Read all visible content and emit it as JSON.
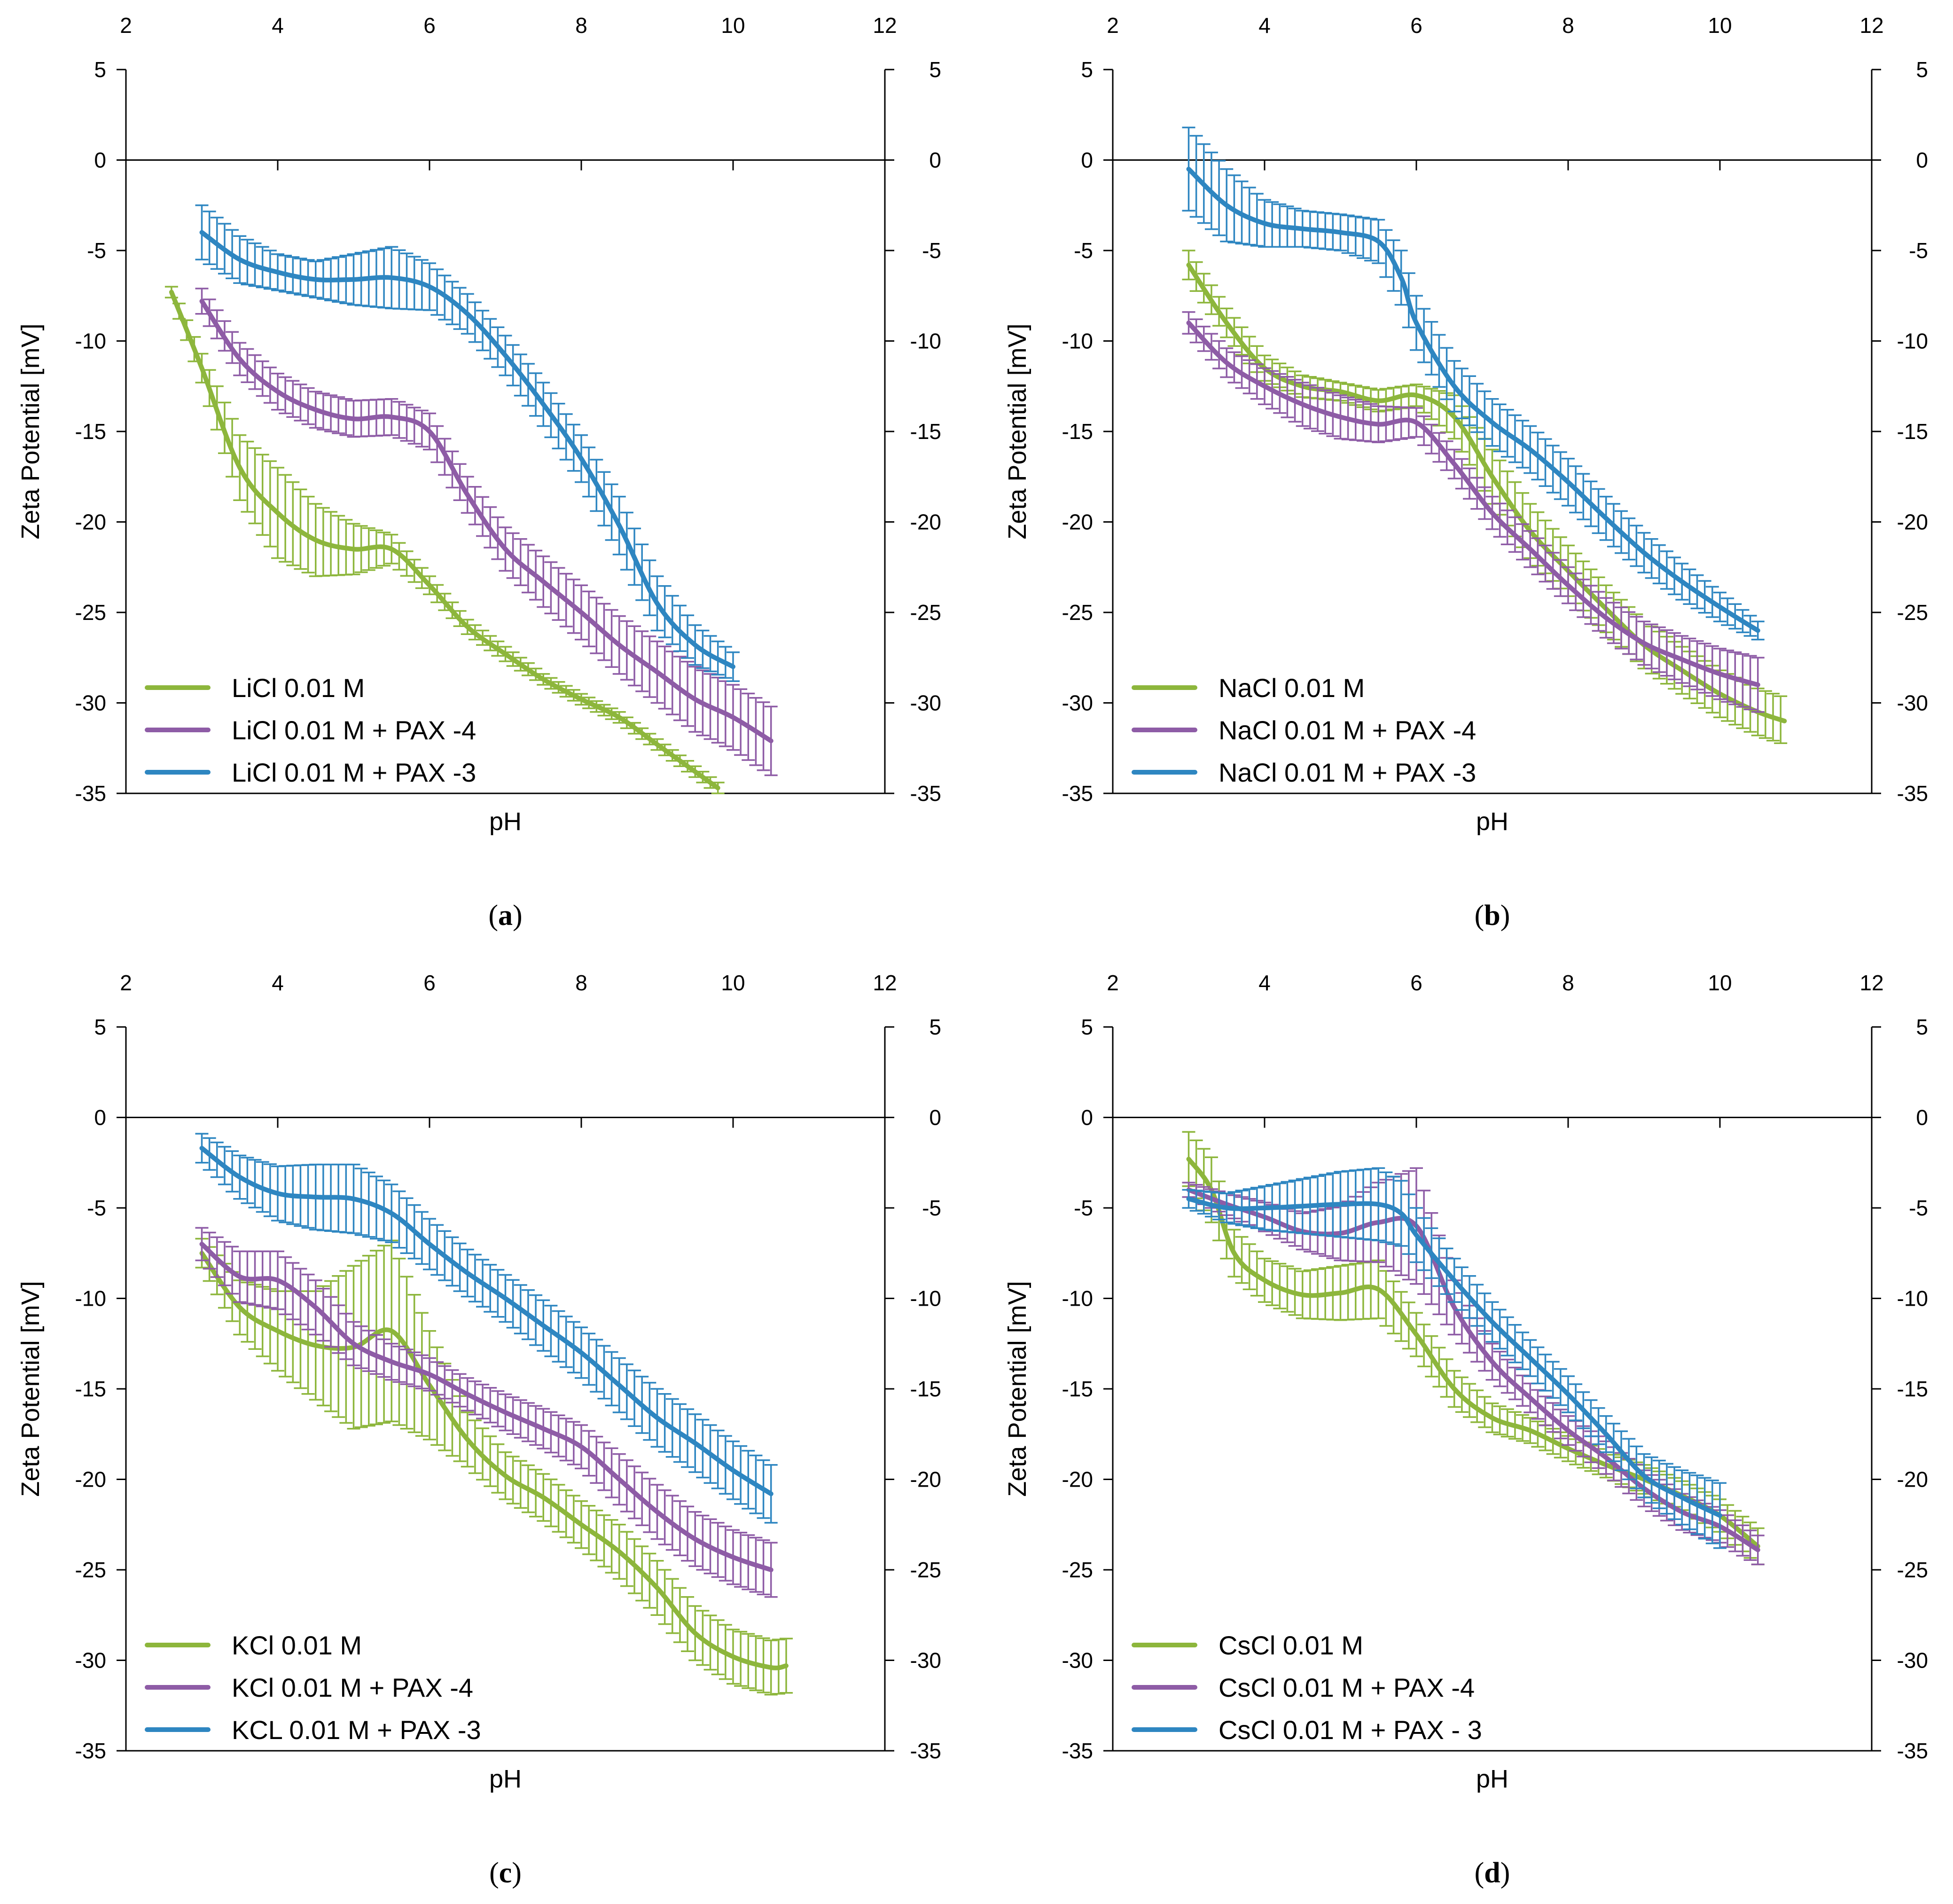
{
  "figure": {
    "axis_color": "#000000"
  },
  "chart_data": [
    {
      "type": "line",
      "panel_id": "a",
      "caption_open": "(",
      "caption_letter": "a",
      "caption_close": ")",
      "xlabel": "pH",
      "ylabel": "Zeta Potential [mV]",
      "xlim": [
        2,
        12
      ],
      "ylim": [
        -35,
        5
      ],
      "xticks": [
        2,
        4,
        6,
        8,
        10,
        12
      ],
      "yticks": [
        5,
        0,
        -5,
        -10,
        -15,
        -20,
        -25,
        -30,
        -35
      ],
      "error_bars": true,
      "legend_position": "bottom-left",
      "series": [
        {
          "name": "LiCl 0.01 M",
          "color": "#8DB63C",
          "x": [
            2.6,
            3.0,
            3.5,
            4.0,
            4.5,
            5.0,
            5.5,
            6.0,
            6.5,
            7.0,
            7.5,
            8.0,
            8.5,
            9.0,
            9.5,
            9.8
          ],
          "y": [
            -7.3,
            -11.5,
            -17.0,
            -19.5,
            -21.0,
            -21.5,
            -21.5,
            -23.5,
            -25.8,
            -27.3,
            -28.7,
            -29.8,
            -30.8,
            -32.3,
            -33.8,
            -34.7
          ],
          "error": [
            0.3,
            0.8,
            1.8,
            2.5,
            2.0,
            1.4,
            0.8,
            0.5,
            0.4,
            0.4,
            0.3,
            0.3,
            0.3,
            0.3,
            0.3,
            0.3
          ]
        },
        {
          "name": "LiCl 0.01 M + PAX -4",
          "color": "#8E5CA6",
          "x": [
            3.0,
            3.5,
            4.0,
            4.5,
            5.0,
            5.5,
            6.0,
            6.5,
            7.0,
            7.5,
            8.0,
            8.5,
            9.0,
            9.5,
            10.0,
            10.5
          ],
          "y": [
            -7.8,
            -11.0,
            -12.8,
            -13.8,
            -14.3,
            -14.2,
            -15.0,
            -18.5,
            -21.5,
            -23.3,
            -25.0,
            -26.8,
            -28.3,
            -29.8,
            -30.8,
            -32.1
          ],
          "error": [
            0.7,
            0.9,
            1.0,
            1.0,
            1.0,
            1.0,
            1.0,
            1.0,
            1.2,
            1.4,
            1.5,
            1.6,
            1.7,
            1.8,
            1.8,
            1.9
          ]
        },
        {
          "name": "LiCl 0.01 M + PAX -3",
          "color": "#2E86C1",
          "x": [
            3.0,
            3.5,
            4.0,
            4.5,
            5.0,
            5.5,
            6.0,
            6.5,
            7.0,
            7.5,
            8.0,
            8.5,
            9.0,
            9.5,
            10.0
          ],
          "y": [
            -4.0,
            -5.5,
            -6.2,
            -6.6,
            -6.6,
            -6.5,
            -7.0,
            -8.5,
            -10.8,
            -13.5,
            -16.5,
            -20.2,
            -24.5,
            -26.8,
            -28.0
          ],
          "error": [
            1.5,
            1.3,
            1.0,
            1.0,
            1.4,
            1.7,
            1.3,
            1.1,
            1.1,
            1.2,
            1.3,
            1.6,
            1.5,
            1.1,
            0.8
          ]
        }
      ]
    },
    {
      "type": "line",
      "panel_id": "b",
      "caption_open": "(",
      "caption_letter": "b",
      "caption_close": ")",
      "xlabel": "pH",
      "ylabel": "Zeta Potential [mV]",
      "xlim": [
        2,
        12
      ],
      "ylim": [
        -35,
        5
      ],
      "xticks": [
        2,
        4,
        6,
        8,
        10,
        12
      ],
      "yticks": [
        5,
        0,
        -5,
        -10,
        -15,
        -20,
        -25,
        -30,
        -35
      ],
      "error_bars": true,
      "legend_position": "bottom-left",
      "series": [
        {
          "name": "NaCl  0.01 M",
          "color": "#8DB63C",
          "x": [
            3.0,
            3.5,
            4.0,
            4.5,
            5.0,
            5.5,
            6.0,
            6.5,
            7.0,
            7.5,
            8.0,
            8.5,
            9.0,
            9.5,
            10.0,
            10.5,
            10.85
          ],
          "y": [
            -5.8,
            -9.0,
            -11.5,
            -12.5,
            -12.8,
            -13.3,
            -13.0,
            -14.2,
            -17.5,
            -20.5,
            -22.7,
            -24.8,
            -26.8,
            -28.2,
            -29.5,
            -30.5,
            -31.0
          ],
          "error": [
            0.8,
            0.8,
            0.7,
            0.6,
            0.5,
            0.6,
            0.6,
            1.2,
            1.5,
            1.5,
            1.4,
            1.3,
            1.3,
            1.3,
            1.3,
            1.3,
            1.3
          ]
        },
        {
          "name": "NaCl 0.01 M + PAX -4",
          "color": "#8E5CA6",
          "x": [
            3.0,
            3.5,
            4.0,
            4.5,
            5.0,
            5.5,
            6.0,
            6.5,
            7.0,
            7.5,
            8.0,
            8.5,
            9.0,
            9.5,
            10.0,
            10.5
          ],
          "y": [
            -9.0,
            -11.2,
            -12.5,
            -13.5,
            -14.2,
            -14.6,
            -14.5,
            -16.8,
            -19.5,
            -21.5,
            -23.5,
            -25.3,
            -26.7,
            -27.6,
            -28.4,
            -29.0
          ],
          "error": [
            0.6,
            0.8,
            1.0,
            1.2,
            1.2,
            1.0,
            0.8,
            0.8,
            0.9,
            1.0,
            1.0,
            1.1,
            1.2,
            1.3,
            1.4,
            1.5
          ]
        },
        {
          "name": "NaCl 0.01 M + PAX -3",
          "color": "#2E86C1",
          "x": [
            3.0,
            3.5,
            4.0,
            4.5,
            5.0,
            5.5,
            5.8,
            6.0,
            6.5,
            7.0,
            7.5,
            8.0,
            8.5,
            9.0,
            9.5,
            10.0,
            10.5
          ],
          "y": [
            -0.5,
            -2.5,
            -3.5,
            -3.8,
            -4.0,
            -4.5,
            -6.5,
            -9.0,
            -12.5,
            -14.5,
            -16.0,
            -17.8,
            -19.8,
            -21.7,
            -23.3,
            -24.7,
            -26.0
          ],
          "error": [
            2.3,
            2.0,
            1.3,
            1.0,
            1.0,
            1.2,
            1.5,
            1.5,
            1.4,
            1.3,
            1.3,
            1.3,
            1.2,
            1.1,
            1.0,
            0.8,
            0.5
          ]
        }
      ]
    },
    {
      "type": "line",
      "panel_id": "c",
      "caption_open": "(",
      "caption_letter": "c",
      "caption_close": ")",
      "xlabel": "pH",
      "ylabel": "Zeta Potential [mV]",
      "xlim": [
        2,
        12
      ],
      "ylim": [
        -35,
        5
      ],
      "xticks": [
        2,
        4,
        6,
        8,
        10,
        12
      ],
      "yticks": [
        5,
        0,
        -5,
        -10,
        -15,
        -20,
        -25,
        -30,
        -35
      ],
      "error_bars": true,
      "legend_position": "bottom-left",
      "series": [
        {
          "name": "KCl 0.01 M",
          "color": "#8DB63C",
          "x": [
            3.0,
            3.5,
            4.0,
            4.5,
            5.0,
            5.5,
            6.0,
            6.5,
            7.0,
            7.5,
            8.0,
            8.5,
            9.0,
            9.5,
            10.0,
            10.5,
            10.7
          ],
          "y": [
            -7.5,
            -10.5,
            -11.8,
            -12.6,
            -12.7,
            -11.8,
            -14.8,
            -17.8,
            -19.8,
            -21.0,
            -22.5,
            -24.0,
            -26.0,
            -28.5,
            -29.8,
            -30.4,
            -30.3
          ],
          "error": [
            0.8,
            1.5,
            2.2,
            3.0,
            4.5,
            5.0,
            3.0,
            1.5,
            1.3,
            1.3,
            1.3,
            1.5,
            1.5,
            1.5,
            1.5,
            1.5,
            1.5
          ]
        },
        {
          "name": "KCl 0.01 M + PAX -4",
          "color": "#8E5CA6",
          "x": [
            3.0,
            3.5,
            4.0,
            4.5,
            5.0,
            5.5,
            6.0,
            6.5,
            7.0,
            7.5,
            8.0,
            8.5,
            9.0,
            9.5,
            10.0,
            10.5
          ],
          "y": [
            -7.0,
            -8.8,
            -9.0,
            -10.5,
            -12.5,
            -13.5,
            -14.2,
            -15.3,
            -16.3,
            -17.2,
            -18.2,
            -20.0,
            -21.8,
            -23.3,
            -24.3,
            -25.0
          ],
          "error": [
            0.9,
            1.4,
            1.6,
            1.5,
            1.2,
            1.0,
            0.9,
            0.9,
            1.0,
            1.1,
            1.2,
            1.4,
            1.5,
            1.5,
            1.5,
            1.5
          ]
        },
        {
          "name": "KCL 0.01 M + PAX -3",
          "color": "#2E86C1",
          "x": [
            3.0,
            3.5,
            4.0,
            4.5,
            5.0,
            5.5,
            6.0,
            6.5,
            7.0,
            7.5,
            8.0,
            8.5,
            9.0,
            9.5,
            10.0,
            10.5
          ],
          "y": [
            -1.7,
            -3.3,
            -4.2,
            -4.4,
            -4.5,
            -5.3,
            -7.0,
            -8.6,
            -10.0,
            -11.5,
            -13.0,
            -14.8,
            -16.6,
            -18.0,
            -19.5,
            -20.8
          ],
          "error": [
            0.8,
            1.2,
            1.5,
            1.8,
            1.9,
            1.6,
            1.4,
            1.3,
            1.3,
            1.4,
            1.4,
            1.5,
            1.6,
            1.6,
            1.6,
            1.6
          ]
        }
      ]
    },
    {
      "type": "line",
      "panel_id": "d",
      "caption_open": "(",
      "caption_letter": "d",
      "caption_close": ")",
      "xlabel": "pH",
      "ylabel": "Zeta Potential [mV]",
      "xlim": [
        2,
        12
      ],
      "ylim": [
        -35,
        5
      ],
      "xticks": [
        2,
        4,
        6,
        8,
        10,
        12
      ],
      "yticks": [
        5,
        0,
        -5,
        -10,
        -15,
        -20,
        -25,
        -30,
        -35
      ],
      "error_bars": true,
      "legend_position": "bottom-left",
      "series": [
        {
          "name": "CsCl 0.01 M",
          "color": "#8DB63C",
          "x": [
            3.0,
            3.3,
            3.6,
            4.0,
            4.5,
            5.0,
            5.5,
            6.0,
            6.5,
            7.0,
            7.5,
            8.0,
            8.5,
            9.0,
            9.5,
            10.0,
            10.5
          ],
          "y": [
            -2.3,
            -4.0,
            -7.5,
            -9.0,
            -9.8,
            -9.7,
            -9.5,
            -12.0,
            -15.0,
            -16.6,
            -17.3,
            -18.3,
            -19.2,
            -20.0,
            -20.9,
            -22.0,
            -23.7
          ],
          "error": [
            1.5,
            1.8,
            1.3,
            1.2,
            1.3,
            1.5,
            1.6,
            1.2,
            1.0,
            0.8,
            0.7,
            0.7,
            0.7,
            0.8,
            0.8,
            0.9,
            1.0
          ]
        },
        {
          "name": "CsCl 0.01 M + PAX -4",
          "color": "#8E5CA6",
          "x": [
            3.0,
            3.5,
            4.0,
            4.5,
            5.0,
            5.5,
            6.0,
            6.5,
            7.0,
            7.5,
            8.0,
            8.5,
            9.0,
            9.5,
            10.0,
            10.5
          ],
          "y": [
            -4.0,
            -4.8,
            -5.5,
            -6.3,
            -6.4,
            -5.8,
            -6.0,
            -10.5,
            -13.5,
            -15.5,
            -17.3,
            -18.8,
            -20.5,
            -21.8,
            -22.6,
            -23.9
          ],
          "error": [
            0.4,
            0.6,
            0.8,
            1.0,
            1.5,
            2.2,
            3.2,
            1.5,
            1.0,
            0.8,
            0.8,
            0.9,
            1.0,
            1.0,
            0.9,
            0.8
          ]
        },
        {
          "name": "CsCl 0.01 M + PAX - 3",
          "color": "#2E86C1",
          "x": [
            3.0,
            3.5,
            4.0,
            4.5,
            5.0,
            5.5,
            5.8,
            6.0,
            6.5,
            7.0,
            7.5,
            8.0,
            8.5,
            9.0,
            9.5,
            10.0
          ],
          "y": [
            -4.5,
            -5.0,
            -5.0,
            -4.9,
            -4.8,
            -4.8,
            -5.3,
            -6.5,
            -9.0,
            -11.3,
            -13.3,
            -15.3,
            -17.5,
            -19.8,
            -21.0,
            -22.0
          ],
          "error": [
            0.5,
            0.8,
            1.2,
            1.5,
            1.8,
            2.0,
            1.8,
            1.5,
            1.2,
            1.1,
            1.0,
            1.0,
            1.0,
            1.2,
            1.5,
            1.8
          ]
        }
      ]
    }
  ]
}
